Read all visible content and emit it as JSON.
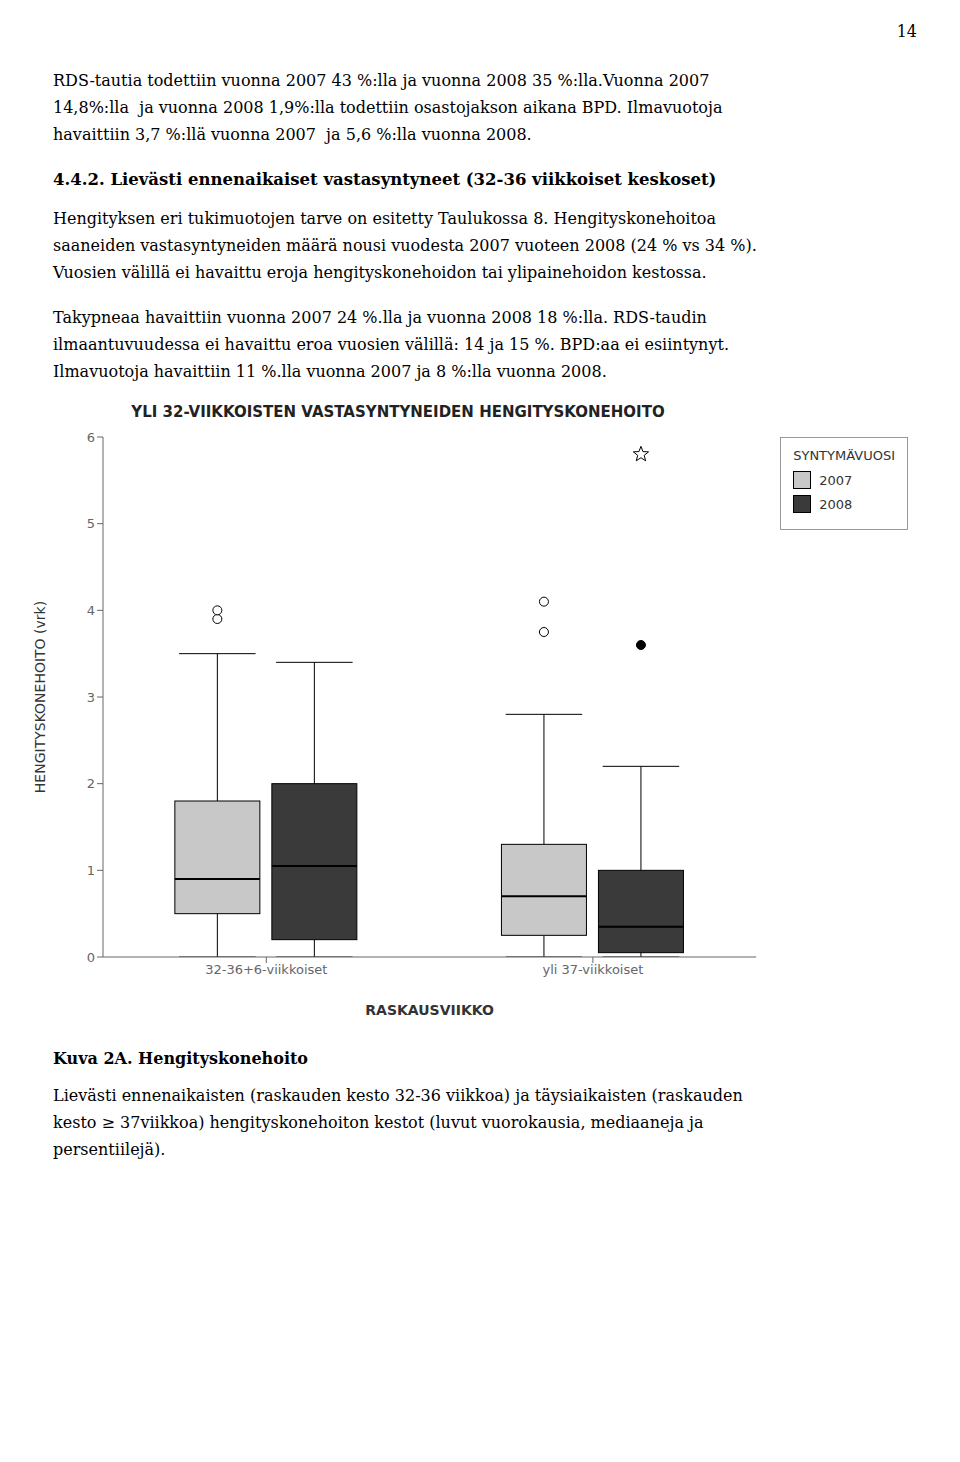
{
  "page_text": {
    "page_number": "14",
    "paragraph1": [
      "RDS-tautia todettiin vuonna 2007 43 %:lla ja vuonna 2008 35 %:lla.Vuonna 2007",
      "14,8%:lla  ja vuonna 2008 1,9%:lla todettiin osastojakson aikana BPD. Ilmavuotoja",
      "havaittiin 3,7 %:llä vuonna 2007  ja 5,6 %:lla vuonna 2008."
    ],
    "heading": "4.4.2. Lievästi ennenaikaiset vastasyntyneet (32-36 viikkoiset keskoset)",
    "paragraph2": [
      "Hengityksen eri tukimuotojen tarve on esitetty Taulukossa 8. Hengityskonehoitoa",
      "saaneiden vastasyntyneiden määrä nousi vuodesta 2007 vuoteen 2008 (24 % vs 34 %).",
      "Vuosien välillä ei havaittu eroja hengityskonehoidon tai ylipainehoidon kestossa."
    ],
    "paragraph3": [
      "Takypneaa havaittiin vuonna 2007 24 %.lla ja vuonna 2008 18 %:lla. RDS-taudin",
      "ilmaantuvuudessa ei havaittu eroa vuosien välillä: 14 ja 15 %. BPD:aa ei esiintynyt.",
      "Ilmavuotoja havaittiin 11 %.lla vuonna 2007 ja 8 %:lla vuonna 2008."
    ],
    "caption_title": "Kuva 2A. Hengityskonehoito",
    "caption": [
      "Lievästi ennenaikaisten (raskauden kesto 32-36 viikkoa) ja täysiaikaisten (raskauden",
      "kesto ≥ 37viikkoa) hengityskonehoiton kestot (luvut vuorokausia, mediaaneja ja",
      "persentiilejä)."
    ]
  },
  "chart_data": {
    "type": "box",
    "title": "YLI 32-VIIKKOISTEN VASTASYNTYNEIDEN HENGITYSKONEHOITO",
    "xlabel": "RASKAUSVIIKKO",
    "ylabel": "HENGITYSKONEHOITO (vrk)",
    "categories": [
      "32-36+6-viikkoiset",
      "yli 37-viikkoiset"
    ],
    "ylim": [
      0,
      6
    ],
    "yticks": [
      0,
      1,
      2,
      3,
      4,
      5,
      6
    ],
    "grid": false,
    "legend": "right",
    "legend_title": "SYNTYMÄVUOSI",
    "series": [
      {
        "name": "2007",
        "color": "#c8c8c8",
        "values": [
          {
            "q1": 0.5,
            "median": 0.9,
            "q3": 1.8,
            "whisker_low": 0.0,
            "whisker_high": 3.5,
            "outliers_open": [
              3.9,
              4.0
            ]
          },
          {
            "q1": 0.25,
            "median": 0.7,
            "q3": 1.3,
            "whisker_low": 0.0,
            "whisker_high": 2.8,
            "outliers_open": [
              3.75,
              4.1
            ]
          }
        ]
      },
      {
        "name": "2008",
        "color": "#3a3a3a",
        "values": [
          {
            "q1": 0.2,
            "median": 1.05,
            "q3": 2.0,
            "whisker_low": 0.0,
            "whisker_high": 3.4
          },
          {
            "q1": 0.05,
            "median": 0.35,
            "q3": 1.0,
            "whisker_low": 0.0,
            "whisker_high": 2.2,
            "outliers_filled": [
              3.6
            ],
            "outliers_star": [
              5.8
            ]
          }
        ]
      }
    ]
  }
}
